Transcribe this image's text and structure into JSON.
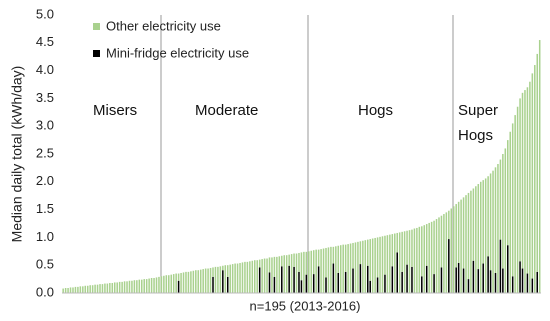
{
  "chart_data": {
    "type": "stacked_bar",
    "x_label": "n=195 (2013-2016)",
    "y_label": "Median daily total (kWh/day)",
    "annotations": [
      "Misers",
      "Moderate",
      "Hogs",
      "Super Hogs"
    ],
    "ylim": [
      0,
      5
    ],
    "yticks": [
      {
        "value": 0,
        "label": "0.0"
      },
      {
        "value": 0.5,
        "label": "0.5"
      },
      {
        "value": 1,
        "label": "1.0"
      },
      {
        "value": 1.5,
        "label": "1.5"
      },
      {
        "value": 2,
        "label": "2.0"
      },
      {
        "value": 2.5,
        "label": "2.5"
      },
      {
        "value": 3,
        "label": "3.0"
      },
      {
        "value": 3.5,
        "label": "3.5"
      },
      {
        "value": 4,
        "label": "4.0"
      },
      {
        "value": 4.5,
        "label": "4.5"
      },
      {
        "value": 5,
        "label": "5.0"
      }
    ],
    "grid": false,
    "categories": [
      null,
      null,
      null,
      null,
      null,
      null,
      null,
      null,
      null,
      null,
      null,
      null,
      null,
      null,
      null,
      null,
      null,
      null,
      null,
      null,
      null,
      null,
      null,
      null,
      null,
      null,
      null,
      null,
      null,
      null,
      null,
      null,
      null,
      null,
      null,
      null,
      null,
      null,
      null,
      null,
      null,
      null,
      null,
      null,
      null,
      null,
      null,
      null,
      null,
      null,
      null,
      null,
      null,
      null,
      null,
      null,
      null,
      null,
      null,
      null,
      null,
      null,
      null,
      null,
      null,
      null,
      null,
      null,
      null,
      null,
      null,
      null,
      null,
      null,
      null,
      null,
      null,
      null,
      null,
      null,
      null,
      null,
      null,
      null,
      null,
      null,
      null,
      null,
      null,
      null,
      null,
      null,
      null,
      null,
      null,
      null,
      null,
      null,
      null,
      null,
      null,
      null,
      null,
      null,
      null,
      null,
      null,
      null,
      null,
      null,
      null,
      null,
      null,
      null,
      null,
      null,
      null,
      null,
      null,
      null,
      null,
      null,
      null,
      null,
      null,
      null,
      null,
      null,
      null,
      null,
      null,
      null,
      null,
      null,
      null,
      null,
      null,
      null,
      null,
      null,
      null,
      null,
      null,
      null,
      null,
      null,
      null,
      null,
      null,
      null,
      null,
      null,
      null,
      null,
      null,
      null,
      null,
      null,
      null,
      null,
      null,
      null,
      null,
      null,
      null,
      null,
      null,
      null,
      null,
      null,
      null,
      null,
      null,
      null,
      null,
      null,
      null,
      null,
      null,
      null,
      null,
      null,
      null,
      null,
      null,
      null,
      null,
      null,
      null,
      null,
      null,
      null,
      null,
      null,
      null
    ],
    "series": [
      {
        "name": "Other electricity use",
        "color": "#a9d18e",
        "values": [
          0.08,
          0.09,
          0.09,
          0.1,
          0.1,
          0.11,
          0.11,
          0.12,
          0.12,
          0.13,
          0.13,
          0.14,
          0.14,
          0.15,
          0.15,
          0.16,
          0.16,
          0.17,
          0.17,
          0.18,
          0.18,
          0.19,
          0.19,
          0.2,
          0.2,
          0.21,
          0.21,
          0.22,
          0.22,
          0.23,
          0.23,
          0.24,
          0.24,
          0.25,
          0.25,
          0.26,
          0.27,
          0.27,
          0.28,
          0.29,
          0.3,
          0.31,
          0.32,
          0.32,
          0.33,
          0.34,
          0.35,
          0.13,
          0.36,
          0.37,
          0.38,
          0.38,
          0.39,
          0.4,
          0.41,
          0.41,
          0.42,
          0.43,
          0.44,
          0.44,
          0.45,
          0.17,
          0.47,
          0.47,
          0.48,
          0.08,
          0.5,
          0.21,
          0.51,
          0.52,
          0.53,
          0.53,
          0.54,
          0.55,
          0.56,
          0.56,
          0.57,
          0.58,
          0.59,
          0.59,
          0.14,
          0.61,
          0.62,
          0.62,
          0.27,
          0.64,
          0.36,
          0.65,
          0.66,
          0.19,
          0.68,
          0.68,
          0.2,
          0.7,
          0.24,
          0.71,
          0.34,
          0.5,
          0.74,
          0.41,
          0.75,
          0.76,
          0.43,
          0.78,
          0.3,
          0.79,
          0.8,
          0.53,
          0.82,
          0.83,
          0.3,
          0.84,
          0.49,
          0.86,
          0.87,
          0.49,
          0.88,
          0.89,
          0.46,
          0.91,
          0.92,
          0.41,
          0.94,
          0.95,
          0.47,
          0.75,
          0.98,
          0.99,
          0.72,
          1.01,
          1.02,
          0.7,
          1.04,
          1.05,
          0.58,
          1.07,
          0.35,
          1.09,
          0.72,
          1.11,
          0.61,
          1.13,
          0.67,
          1.16,
          1.17,
          1.19,
          0.9,
          1.22,
          0.75,
          1.26,
          1.28,
          0.96,
          1.33,
          1.36,
          0.93,
          1.42,
          1.45,
          0.51,
          1.52,
          1.56,
          1.14,
          1.1,
          1.68,
          1.28,
          1.76,
          1.55,
          1.84,
          1.3,
          1.92,
          1.53,
          2.0,
          1.5,
          2.06,
          1.44,
          1.74,
          2.2,
          1.9,
          2.32,
          1.44,
          2.06,
          2.6,
          1.89,
          2.9,
          2.75,
          3.2,
          3.35,
          2.93,
          3.16,
          3.65,
          3.35,
          3.8,
          3.69,
          4.1,
          3.92,
          4.55
        ]
      },
      {
        "name": "Mini-fridge electricity use",
        "color": "#000000",
        "values": [
          0,
          0,
          0,
          0,
          0,
          0,
          0,
          0,
          0,
          0,
          0,
          0,
          0,
          0,
          0,
          0,
          0,
          0,
          0,
          0,
          0,
          0,
          0,
          0,
          0,
          0,
          0,
          0,
          0,
          0,
          0,
          0,
          0,
          0,
          0,
          0,
          0,
          0,
          0,
          0,
          0,
          0,
          0,
          0,
          0,
          0,
          0,
          0.22,
          0,
          0,
          0,
          0,
          0,
          0,
          0,
          0,
          0,
          0,
          0,
          0,
          0,
          0.29,
          0,
          0,
          0,
          0.41,
          0,
          0.29,
          0,
          0,
          0,
          0,
          0,
          0,
          0,
          0,
          0,
          0,
          0,
          0,
          0.46,
          0,
          0,
          0,
          0.37,
          0,
          0.29,
          0,
          0,
          0.48,
          0,
          0,
          0.49,
          0,
          0.47,
          0,
          0.38,
          0.23,
          0,
          0.33,
          0,
          0,
          0.34,
          0,
          0.48,
          0,
          0,
          0.28,
          0,
          0,
          0.53,
          0,
          0.36,
          0,
          0,
          0.38,
          0,
          0,
          0.44,
          0,
          0,
          0.52,
          0,
          0,
          0.49,
          0.22,
          0,
          0,
          0.28,
          0,
          0,
          0.33,
          0,
          0,
          0.48,
          0,
          0.73,
          0,
          0.38,
          0,
          0.51,
          0,
          0.47,
          0,
          0,
          0,
          0.3,
          0,
          0.49,
          0,
          0,
          0.34,
          0,
          0,
          0.46,
          0,
          0,
          0.97,
          0,
          0,
          0.46,
          0.54,
          0,
          0.44,
          0,
          0.25,
          0,
          0.58,
          0,
          0.43,
          0,
          0.53,
          0,
          0.66,
          0.41,
          0,
          0.36,
          0,
          0.96,
          0.44,
          0,
          0.86,
          0,
          0.3,
          0,
          0,
          0.57,
          0.44,
          0,
          0.35,
          0,
          0.26,
          0,
          0.38,
          0
        ]
      }
    ]
  }
}
